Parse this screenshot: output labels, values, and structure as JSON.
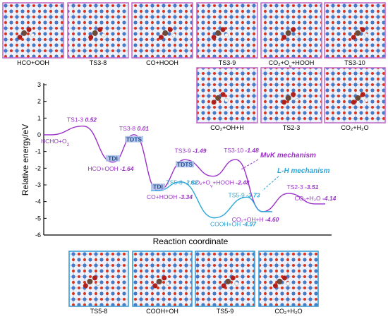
{
  "chart_data": {
    "type": "line",
    "xlabel": "Reaction coordinate",
    "ylabel": "Relative energy/eV",
    "ylim": [
      -6,
      3
    ],
    "yticks": [
      3,
      2,
      1,
      0,
      -1,
      -2,
      -3,
      -4,
      -5,
      -6
    ],
    "colors": {
      "mvk": "#9b30c8",
      "lh": "#2ba7d8",
      "tdi_box": "#a9bfe6",
      "panel_top": "#c46ec9",
      "panel_bottom": "#3aa0d6"
    },
    "series": [
      {
        "name": "MvK mechanism",
        "points": [
          {
            "label": "HCHO+O",
            "sub": "2",
            "value": 0.0,
            "value_text": ""
          },
          {
            "label": "TS1-3",
            "value": 0.52,
            "value_text": "0.52"
          },
          {
            "label": "HCO+OOH",
            "value": -1.64,
            "value_text": "-1.64"
          },
          {
            "label": "TS3-8",
            "value": 0.01,
            "value_text": "0.01"
          },
          {
            "label": "CO+HOOH",
            "value": -3.34,
            "value_text": "-3.34"
          },
          {
            "label": "TS3-9",
            "value": -1.49,
            "value_text": "-1.49"
          },
          {
            "label": "CO₂+O",
            "sub": "v",
            "suffix": "+HOOH",
            "value": -2.48,
            "value_text": "-2.48"
          },
          {
            "label": "TS3-10",
            "value": -1.48,
            "value_text": "-1.48"
          },
          {
            "label": "CO₂+OH+H",
            "value": -4.6,
            "value_text": "-4.60"
          },
          {
            "label": "TS2-3",
            "value": -3.51,
            "value_text": "-3.51"
          },
          {
            "label": "CO₂+H₂O",
            "value": -4.14,
            "value_text": "-4.14"
          }
        ]
      },
      {
        "name": "L-H mechanism",
        "points": [
          {
            "label": "CO+HOOH",
            "value": -3.34
          },
          {
            "label": "TS5-8",
            "value": -2.82,
            "value_text": "-2.82"
          },
          {
            "label": "COOH+OH",
            "value": -4.97,
            "value_text": "-4.97"
          },
          {
            "label": "TS5-9",
            "value": -3.73,
            "value_text": "-3.73"
          },
          {
            "label": "CO₂+OH+H",
            "value": -4.6
          }
        ]
      }
    ],
    "markers": [
      {
        "text": "TDI",
        "at": "HCO+OOH"
      },
      {
        "text": "TDTS",
        "at": "TS3-8"
      },
      {
        "text": "TDI",
        "at": "CO+HOOH"
      },
      {
        "text": "TDTS",
        "at": "TS3-9"
      }
    ]
  },
  "panels_top": [
    {
      "label": "HCO+OOH"
    },
    {
      "label": "TS3-8"
    },
    {
      "label": "CO+HOOH"
    },
    {
      "label": "TS3-9"
    },
    {
      "label": "CO₂+O",
      "sub": "v",
      "suffix": "+HOOH"
    },
    {
      "label": "TS3-10"
    },
    {
      "label": "CO₂+OH+H"
    },
    {
      "label": "TS2-3"
    },
    {
      "label": "CO₂+H₂O"
    }
  ],
  "panels_bottom": [
    {
      "label": "TS5-8"
    },
    {
      "label": "COOH+OH"
    },
    {
      "label": "TS5-9"
    },
    {
      "label": "CO₂+H₂O"
    }
  ]
}
